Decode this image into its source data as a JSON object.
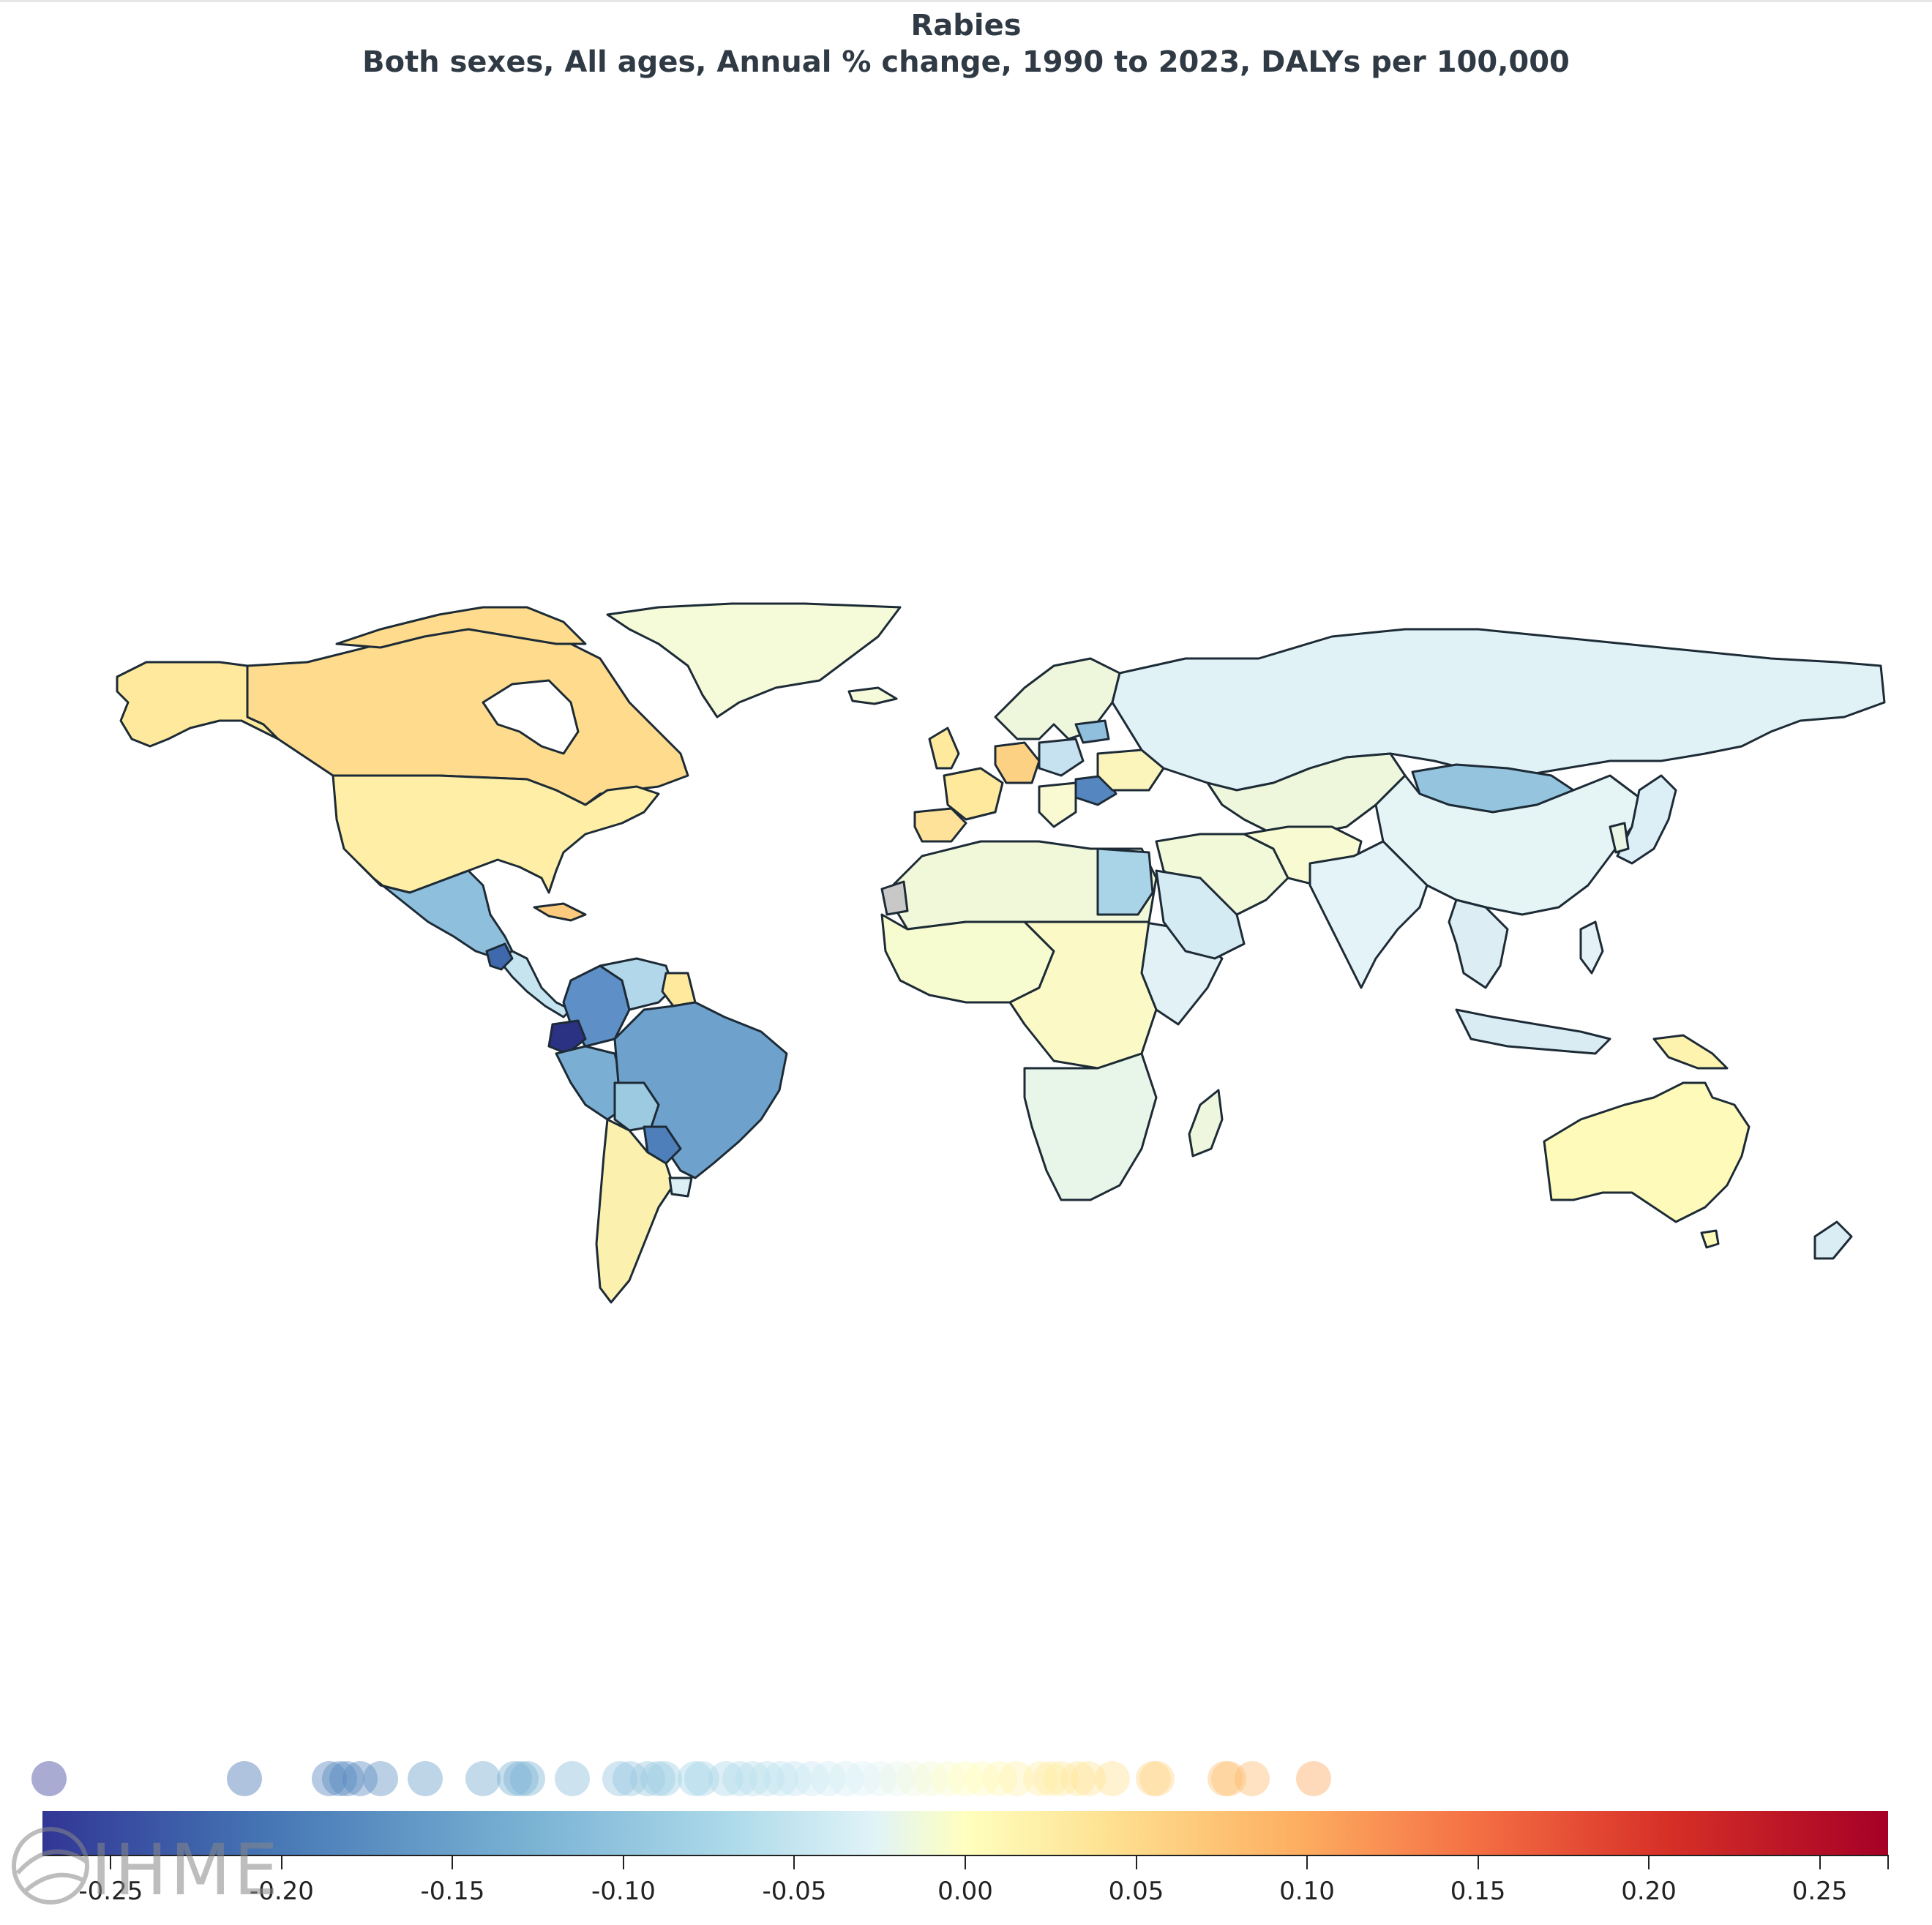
{
  "header": {
    "title": "Rabies",
    "subtitle": "Both sexes, All ages, Annual % change, 1990 to 2023, DALYs per 100,000"
  },
  "colors": {
    "scale_low": "#313695",
    "scale_mid": "#ffffbf",
    "scale_high": "#a50026",
    "no_data": "#c8c8c8",
    "border": "#1d2b36"
  },
  "legend": {
    "ticks": [
      "-0.25",
      "-0.20",
      "-0.15",
      "-0.10",
      "-0.05",
      "0.00",
      "0.05",
      "0.10",
      "0.15",
      "0.20",
      "0.25"
    ],
    "range": [
      -0.27,
      0.27
    ],
    "distribution_values": [
      -0.268,
      -0.211,
      -0.186,
      -0.183,
      -0.181,
      -0.177,
      -0.171,
      -0.158,
      -0.141,
      -0.132,
      -0.13,
      -0.128,
      -0.115,
      -0.101,
      -0.098,
      -0.093,
      -0.09,
      -0.088,
      -0.079,
      -0.077,
      -0.07,
      -0.066,
      -0.062,
      -0.058,
      -0.054,
      -0.05,
      -0.045,
      -0.04,
      -0.035,
      -0.03,
      -0.025,
      -0.02,
      -0.015,
      -0.01,
      -0.005,
      0.0,
      0.005,
      0.01,
      0.015,
      0.022,
      0.025,
      0.028,
      0.033,
      0.036,
      0.043,
      0.055,
      0.056,
      0.076,
      0.077,
      0.084,
      0.102
    ]
  },
  "logo": {
    "text": "IHME"
  }
}
